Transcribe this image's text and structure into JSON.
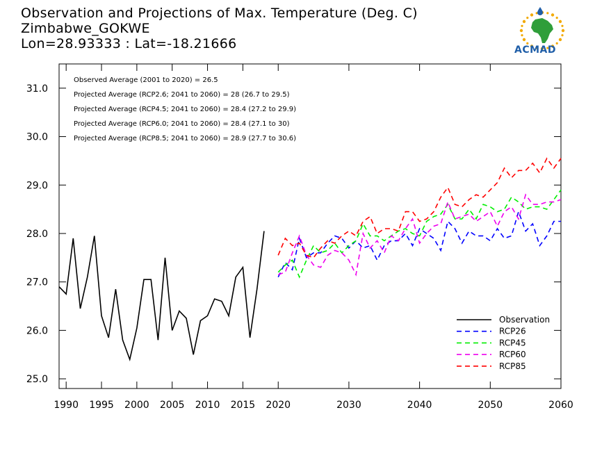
{
  "header": {
    "title": "Observation and Projections of Max. Temperature (Deg. C)",
    "station": "Zimbabwe_GOKWE",
    "coords": "Lon=28.93333 : Lat=-18.21666"
  },
  "logo": {
    "text": "ACMAD",
    "icon": "africa-map-icon",
    "colors": {
      "sun": "#f2a900",
      "map": "#2f9e3a",
      "drop": "#1f5ea8"
    }
  },
  "chart_data": {
    "type": "line",
    "xlim": [
      1989,
      2060
    ],
    "ylim": [
      24.8,
      31.5
    ],
    "xticks": [
      1990,
      1995,
      2000,
      2005,
      2010,
      2015,
      2020,
      2030,
      2040,
      2050,
      2060
    ],
    "yticks": [
      25.0,
      26.0,
      27.0,
      28.0,
      29.0,
      30.0,
      31.0
    ],
    "annotations": [
      "Observed Average (2001 to 2020) = 26.5",
      "Projected Average (RCP2.6; 2041 to 2060) = 28 (26.7 to 29.5)",
      "Projected Average (RCP4.5; 2041 to 2060) = 28.4 (27.2 to 29.9)",
      "Projected Average (RCP6.0; 2041 to 2060) = 28.4 (27.1 to 30)",
      "Projected Average (RCP8.5; 2041 to 2060) = 28.9 (27.7 to 30.6)"
    ],
    "legend_position": "bottom-right",
    "series": [
      {
        "name": "Observation",
        "color": "#000000",
        "dash": "solid",
        "x": [
          1989,
          1990,
          1991,
          1992,
          1993,
          1994,
          1995,
          1996,
          1997,
          1998,
          1999,
          2000,
          2001,
          2002,
          2003,
          2004,
          2005,
          2006,
          2007,
          2008,
          2009,
          2010,
          2011,
          2012,
          2013,
          2014,
          2015,
          2016,
          2017,
          2018,
          2019
        ],
        "y": [
          26.9,
          26.75,
          27.9,
          26.45,
          27.1,
          27.95,
          26.3,
          25.85,
          26.85,
          25.8,
          25.4,
          26.05,
          27.05,
          27.05,
          25.8,
          27.5,
          26.0,
          26.4,
          26.25,
          25.5,
          26.2,
          26.3,
          26.65,
          26.6,
          26.3,
          27.1,
          27.3,
          25.85,
          26.85,
          28.05,
          null
        ]
      },
      {
        "name": "RCP26",
        "color": "#0000ff",
        "dash": "dashed",
        "x": [
          2020,
          2021,
          2022,
          2023,
          2024,
          2025,
          2026,
          2027,
          2028,
          2029,
          2030,
          2031,
          2032,
          2033,
          2034,
          2035,
          2036,
          2037,
          2038,
          2039,
          2040,
          2041,
          2042,
          2043,
          2044,
          2045,
          2046,
          2047,
          2048,
          2049,
          2050,
          2051,
          2052,
          2053,
          2054,
          2055,
          2056,
          2057,
          2058,
          2059,
          2060
        ],
        "y": [
          27.1,
          27.4,
          27.25,
          27.9,
          27.5,
          27.6,
          27.6,
          27.8,
          27.95,
          27.9,
          27.7,
          27.85,
          27.7,
          27.75,
          27.45,
          27.75,
          27.85,
          27.85,
          28.0,
          27.75,
          28.1,
          28.0,
          27.9,
          27.65,
          28.25,
          28.1,
          27.8,
          28.05,
          27.95,
          27.95,
          27.85,
          28.1,
          27.9,
          27.95,
          28.45,
          28.05,
          28.2,
          27.75,
          27.95,
          28.25,
          28.25
        ]
      },
      {
        "name": "RCP45",
        "color": "#00ee00",
        "dash": "dashed",
        "x": [
          2020,
          2021,
          2022,
          2023,
          2024,
          2025,
          2026,
          2027,
          2028,
          2029,
          2030,
          2031,
          2032,
          2033,
          2034,
          2035,
          2036,
          2037,
          2038,
          2039,
          2040,
          2041,
          2042,
          2043,
          2044,
          2045,
          2046,
          2047,
          2048,
          2049,
          2050,
          2051,
          2052,
          2053,
          2054,
          2055,
          2056,
          2057,
          2058,
          2059,
          2060
        ],
        "y": [
          27.2,
          27.35,
          27.45,
          27.1,
          27.45,
          27.75,
          27.6,
          27.65,
          27.8,
          27.6,
          27.75,
          27.85,
          28.2,
          27.95,
          27.95,
          27.85,
          27.95,
          28.05,
          28.1,
          28.0,
          27.95,
          28.25,
          28.35,
          28.4,
          28.6,
          28.3,
          28.3,
          28.5,
          28.3,
          28.6,
          28.55,
          28.45,
          28.5,
          28.75,
          28.65,
          28.5,
          28.55,
          28.55,
          28.5,
          28.7,
          28.9
        ]
      },
      {
        "name": "RCP60",
        "color": "#ee00ee",
        "dash": "dashed",
        "x": [
          2020,
          2021,
          2022,
          2023,
          2024,
          2025,
          2026,
          2027,
          2028,
          2029,
          2030,
          2031,
          2032,
          2033,
          2034,
          2035,
          2036,
          2037,
          2038,
          2039,
          2040,
          2041,
          2042,
          2043,
          2044,
          2045,
          2046,
          2047,
          2048,
          2049,
          2050,
          2051,
          2052,
          2053,
          2054,
          2055,
          2056,
          2057,
          2058,
          2059,
          2060
        ],
        "y": [
          27.15,
          27.2,
          27.6,
          27.95,
          27.55,
          27.35,
          27.3,
          27.55,
          27.65,
          27.6,
          27.45,
          27.15,
          28.0,
          27.7,
          27.85,
          27.6,
          27.95,
          27.85,
          28.1,
          28.3,
          27.8,
          28.0,
          28.15,
          28.2,
          28.65,
          28.3,
          28.35,
          28.4,
          28.25,
          28.35,
          28.45,
          28.15,
          28.45,
          28.55,
          28.3,
          28.8,
          28.6,
          28.6,
          28.65,
          28.65,
          28.7
        ]
      },
      {
        "name": "RCP85",
        "color": "#ff0000",
        "dash": "dashed",
        "x": [
          2020,
          2021,
          2022,
          2023,
          2024,
          2025,
          2026,
          2027,
          2028,
          2029,
          2030,
          2031,
          2032,
          2033,
          2034,
          2035,
          2036,
          2037,
          2038,
          2039,
          2040,
          2041,
          2042,
          2043,
          2044,
          2045,
          2046,
          2047,
          2048,
          2049,
          2050,
          2051,
          2052,
          2053,
          2054,
          2055,
          2056,
          2057,
          2058,
          2059,
          2060
        ],
        "y": [
          27.55,
          27.9,
          27.75,
          27.8,
          27.55,
          27.5,
          27.7,
          27.85,
          27.8,
          27.95,
          28.05,
          27.95,
          28.25,
          28.35,
          28.0,
          28.1,
          28.1,
          28.05,
          28.45,
          28.45,
          28.25,
          28.3,
          28.45,
          28.75,
          28.95,
          28.6,
          28.55,
          28.7,
          28.8,
          28.75,
          28.9,
          29.05,
          29.35,
          29.15,
          29.3,
          29.3,
          29.45,
          29.25,
          29.55,
          29.35,
          29.55
        ]
      }
    ]
  }
}
